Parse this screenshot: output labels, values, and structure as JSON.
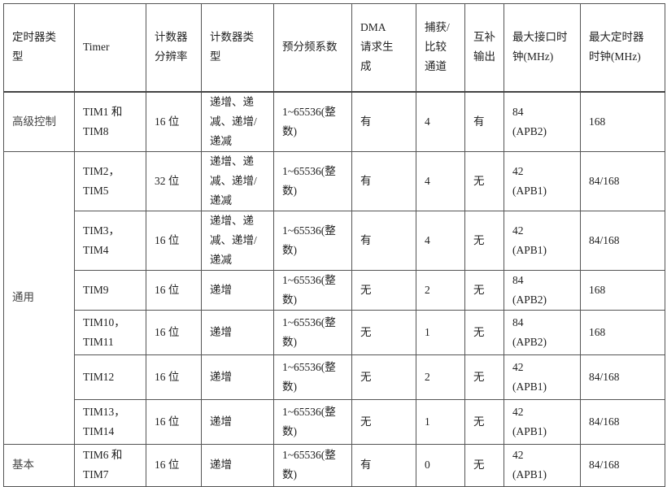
{
  "headers": [
    "定时器类型",
    "Timer",
    "计数器分辨率",
    "计数器类型",
    "预分频系数",
    "DMA 请求生成",
    "捕获/比较通道",
    "互补输出",
    "最大接口时钟(MHz)",
    "最大定时器时钟(MHz)"
  ],
  "header_lines": [
    [
      "定时器类",
      "型"
    ],
    [
      "Timer"
    ],
    [
      "计数器",
      "分辨率"
    ],
    [
      "计数器类",
      "型"
    ],
    [
      "预分频系数"
    ],
    [
      "DMA 请",
      "求生成"
    ],
    [
      "捕获/",
      "比较",
      "通道"
    ],
    [
      "互补",
      "输出"
    ],
    [
      "最大接口时",
      "钟(MHz)"
    ],
    [
      "最大定时器",
      "时钟(MHz)"
    ]
  ],
  "groups": [
    {
      "type": "高级控制",
      "rows": [
        {
          "timer": [
            "TIM1 和",
            "TIM8"
          ],
          "resolution": "16 位",
          "counter_type": [
            "递增、递",
            "减、递增/",
            "递减"
          ],
          "prescaler": [
            "1~65536(整",
            "数)"
          ],
          "dma": "有",
          "channels": "4",
          "complementary": "有",
          "interface_clock": [
            "84",
            "(APB2)"
          ],
          "timer_clock": "168"
        }
      ]
    },
    {
      "type": "通用",
      "rows": [
        {
          "timer": [
            "TIM2，",
            "TIM5"
          ],
          "resolution": "32 位",
          "counter_type": [
            "递增、递",
            "减、递增/",
            "递减"
          ],
          "prescaler": [
            "1~65536(整",
            "数)"
          ],
          "dma": "有",
          "channels": "4",
          "complementary": "无",
          "interface_clock": [
            "42",
            "(APB1)"
          ],
          "timer_clock": "84/168"
        },
        {
          "timer": [
            "TIM3，",
            "TIM4"
          ],
          "resolution": "16 位",
          "counter_type": [
            "递增、递",
            "减、递增/",
            "递减"
          ],
          "prescaler": [
            "1~65536(整",
            "数)"
          ],
          "dma": "有",
          "channels": "4",
          "complementary": "无",
          "interface_clock": [
            "42",
            "(APB1)"
          ],
          "timer_clock": "84/168"
        },
        {
          "timer": [
            "TIM9"
          ],
          "resolution": "16 位",
          "counter_type": [
            "递增"
          ],
          "prescaler": [
            "1~65536(整",
            "数)"
          ],
          "dma": "无",
          "channels": "2",
          "complementary": "无",
          "interface_clock": [
            "84",
            "(APB2)"
          ],
          "timer_clock": "168"
        },
        {
          "timer": [
            "TIM10，",
            "TIM11"
          ],
          "resolution": "16 位",
          "counter_type": [
            "递增"
          ],
          "prescaler": [
            "1~65536(整",
            "数)"
          ],
          "dma": "无",
          "channels": "1",
          "complementary": "无",
          "interface_clock": [
            "84",
            "(APB2)"
          ],
          "timer_clock": "168"
        },
        {
          "timer": [
            "TIM12"
          ],
          "resolution": "16 位",
          "counter_type": [
            "递增"
          ],
          "prescaler": [
            "1~65536(整",
            "数)"
          ],
          "dma": "无",
          "channels": "2",
          "complementary": "无",
          "interface_clock": [
            "42",
            "(APB1)"
          ],
          "timer_clock": "84/168"
        },
        {
          "timer": [
            "TIM13，",
            "TIM14"
          ],
          "resolution": "16 位",
          "counter_type": [
            "递增"
          ],
          "prescaler": [
            "1~65536(整",
            "数)"
          ],
          "dma": "无",
          "channels": "1",
          "complementary": "无",
          "interface_clock": [
            "42",
            "(APB1)"
          ],
          "timer_clock": "84/168"
        }
      ]
    },
    {
      "type": "基本",
      "rows": [
        {
          "timer": [
            "TIM6 和",
            "TIM7"
          ],
          "resolution": "16 位",
          "counter_type": [
            "递增"
          ],
          "prescaler": [
            "1~65536(整",
            "数)"
          ],
          "dma": "有",
          "channels": "0",
          "complementary": "无",
          "interface_clock": [
            "42",
            "(APB1)"
          ],
          "timer_clock": "84/168"
        }
      ]
    }
  ]
}
